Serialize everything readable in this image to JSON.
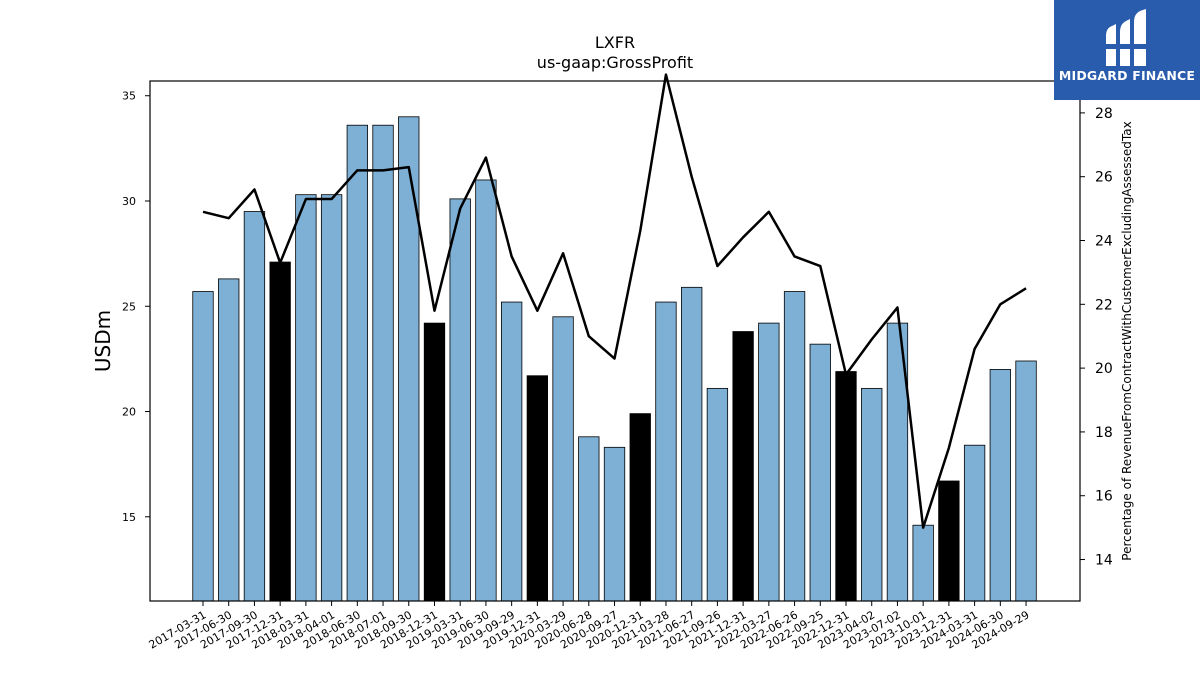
{
  "chart_data": {
    "type": "bar",
    "title": "LXFR",
    "subtitle": "us-gaap:GrossProfit",
    "ylabel": "USDm",
    "y2label": "Percentage of RevenueFromContractWithCustomerExcludingAssessedTax",
    "ylim": [
      11,
      35.7
    ],
    "y2lim": [
      12.7,
      29.0
    ],
    "yticks": [
      15,
      20,
      25,
      30,
      35
    ],
    "y2ticks": [
      14,
      16,
      18,
      20,
      22,
      24,
      26,
      28
    ],
    "grid": false,
    "categories": [
      "2017-03-31",
      "2017-06-30",
      "2017-09-30",
      "2017-12-31",
      "2018-03-31",
      "2018-04-01",
      "2018-06-30",
      "2018-07-01",
      "2018-09-30",
      "2018-12-31",
      "2019-03-31",
      "2019-06-30",
      "2019-09-29",
      "2019-12-31",
      "2020-03-29",
      "2020-06-28",
      "2020-09-27",
      "2020-12-31",
      "2021-03-28",
      "2021-06-27",
      "2021-09-26",
      "2021-12-31",
      "2022-03-27",
      "2022-06-26",
      "2022-09-25",
      "2022-12-31",
      "2023-04-02",
      "2023-07-02",
      "2023-10-01",
      "2023-12-31",
      "2024-03-31",
      "2024-06-30",
      "2024-09-29"
    ],
    "series": [
      {
        "kind": "bar",
        "axis": "left",
        "values": [
          25.7,
          26.3,
          29.5,
          27.1,
          30.3,
          30.3,
          33.6,
          33.6,
          34.0,
          24.2,
          30.1,
          31.0,
          25.2,
          21.7,
          24.5,
          18.8,
          18.3,
          19.9,
          25.2,
          25.9,
          21.1,
          23.8,
          24.2,
          25.7,
          23.2,
          21.9,
          21.1,
          24.2,
          14.6,
          16.7,
          18.4,
          22.0,
          22.4
        ],
        "highlight": [
          false,
          false,
          false,
          true,
          false,
          false,
          false,
          false,
          false,
          true,
          false,
          false,
          false,
          true,
          false,
          false,
          false,
          true,
          false,
          false,
          false,
          true,
          false,
          false,
          false,
          true,
          false,
          false,
          false,
          true,
          false,
          false,
          false
        ],
        "color": "#7eb0d5",
        "highlight_color": "#000000"
      },
      {
        "kind": "line",
        "axis": "right",
        "values": [
          24.9,
          24.7,
          25.6,
          23.3,
          25.3,
          25.3,
          26.2,
          26.2,
          26.3,
          21.8,
          25.0,
          26.6,
          23.5,
          21.8,
          23.6,
          21.0,
          20.3,
          24.3,
          29.2,
          26.0,
          23.2,
          24.1,
          24.9,
          23.5,
          23.2,
          19.8,
          20.9,
          21.9,
          15.0,
          17.5,
          20.6,
          22.0,
          22.5
        ],
        "color": "#000000"
      }
    ]
  },
  "branding": {
    "logo_text": "MIDGARD FINANCE",
    "background": "#2a5cad"
  }
}
